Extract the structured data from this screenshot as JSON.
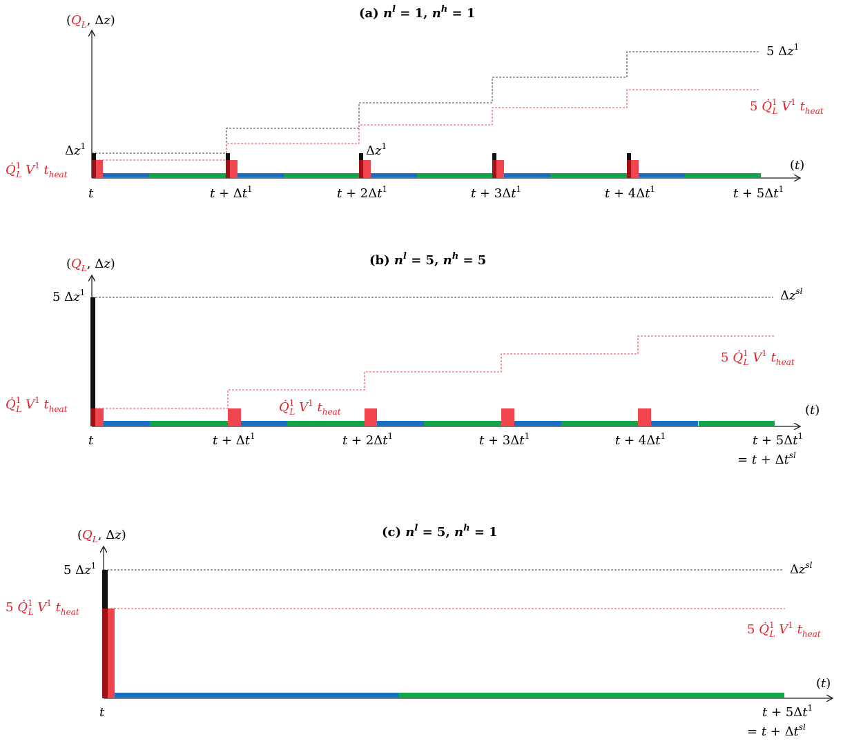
{
  "colors": {
    "axis": "#222222",
    "red": "#e8202a",
    "red_bar": "#f0454e",
    "dark_red": "#a01015",
    "black_bar": "#111111",
    "blue": "#1a6fc0",
    "green": "#10a548",
    "black_dash": "#444444"
  },
  "panels": [
    {
      "title": "(a) n^l = 1, n^h = 1",
      "title_parts": [
        "(a) ",
        "n",
        "l",
        " = 1, ",
        "n",
        "h",
        " = 1"
      ],
      "y_axis_label": "(Q_L, Δz)",
      "x_axis_label": "(t)",
      "y_label_dz": "Δz¹",
      "y_label_q": "Q̇¹_L V¹ t_heat",
      "mid_label_dz": "Δz¹",
      "right_label_top": "5 Δz¹",
      "right_label_bottom": "5 Q̇¹_L V¹ t_heat",
      "x_ticks": [
        "t",
        "t + Δt¹",
        "t + 2Δt¹",
        "t + 3Δt¹",
        "t + 4Δt¹",
        "t + 5Δt¹"
      ]
    },
    {
      "title": "(b) n^l = 5, n^h = 5",
      "title_parts": [
        "(b) ",
        "n",
        "l",
        " = 5, ",
        "n",
        "h",
        " = 5"
      ],
      "y_axis_label": "(Q_L, Δz)",
      "x_axis_label": "(t)",
      "y_label_dz": "5 Δz¹",
      "y_label_q": "Q̇¹_L V¹ t_heat",
      "mid_label_q": "Q̇¹_L V¹ t_heat",
      "right_label_top": "Δz^sl",
      "right_label_bottom": "5 Q̇¹_L V¹ t_heat",
      "x_ticks": [
        "t",
        "t + Δt¹",
        "t + 2Δt¹",
        "t + 3Δt¹",
        "t + 4Δt¹",
        "t + 5Δt¹"
      ],
      "x_tick_extra": "= t + Δt^sl"
    },
    {
      "title": "(c) n^l = 5, n^h = 1",
      "title_parts": [
        "(c) ",
        "n",
        "l",
        " = 5, ",
        "n",
        "h",
        " = 1"
      ],
      "y_axis_label": "(Q_L, Δz)",
      "x_axis_label": "(t)",
      "y_label_dz": "5 Δz¹",
      "y_label_q": "5 Q̇¹_L V¹ t_heat",
      "right_label_top": "Δz^sl",
      "right_label_bottom": "5 Q̇¹_L V¹ t_heat",
      "x_ticks": [
        "t",
        "t + 5Δt¹"
      ],
      "x_tick_extra": "= t + Δt^sl"
    }
  ]
}
